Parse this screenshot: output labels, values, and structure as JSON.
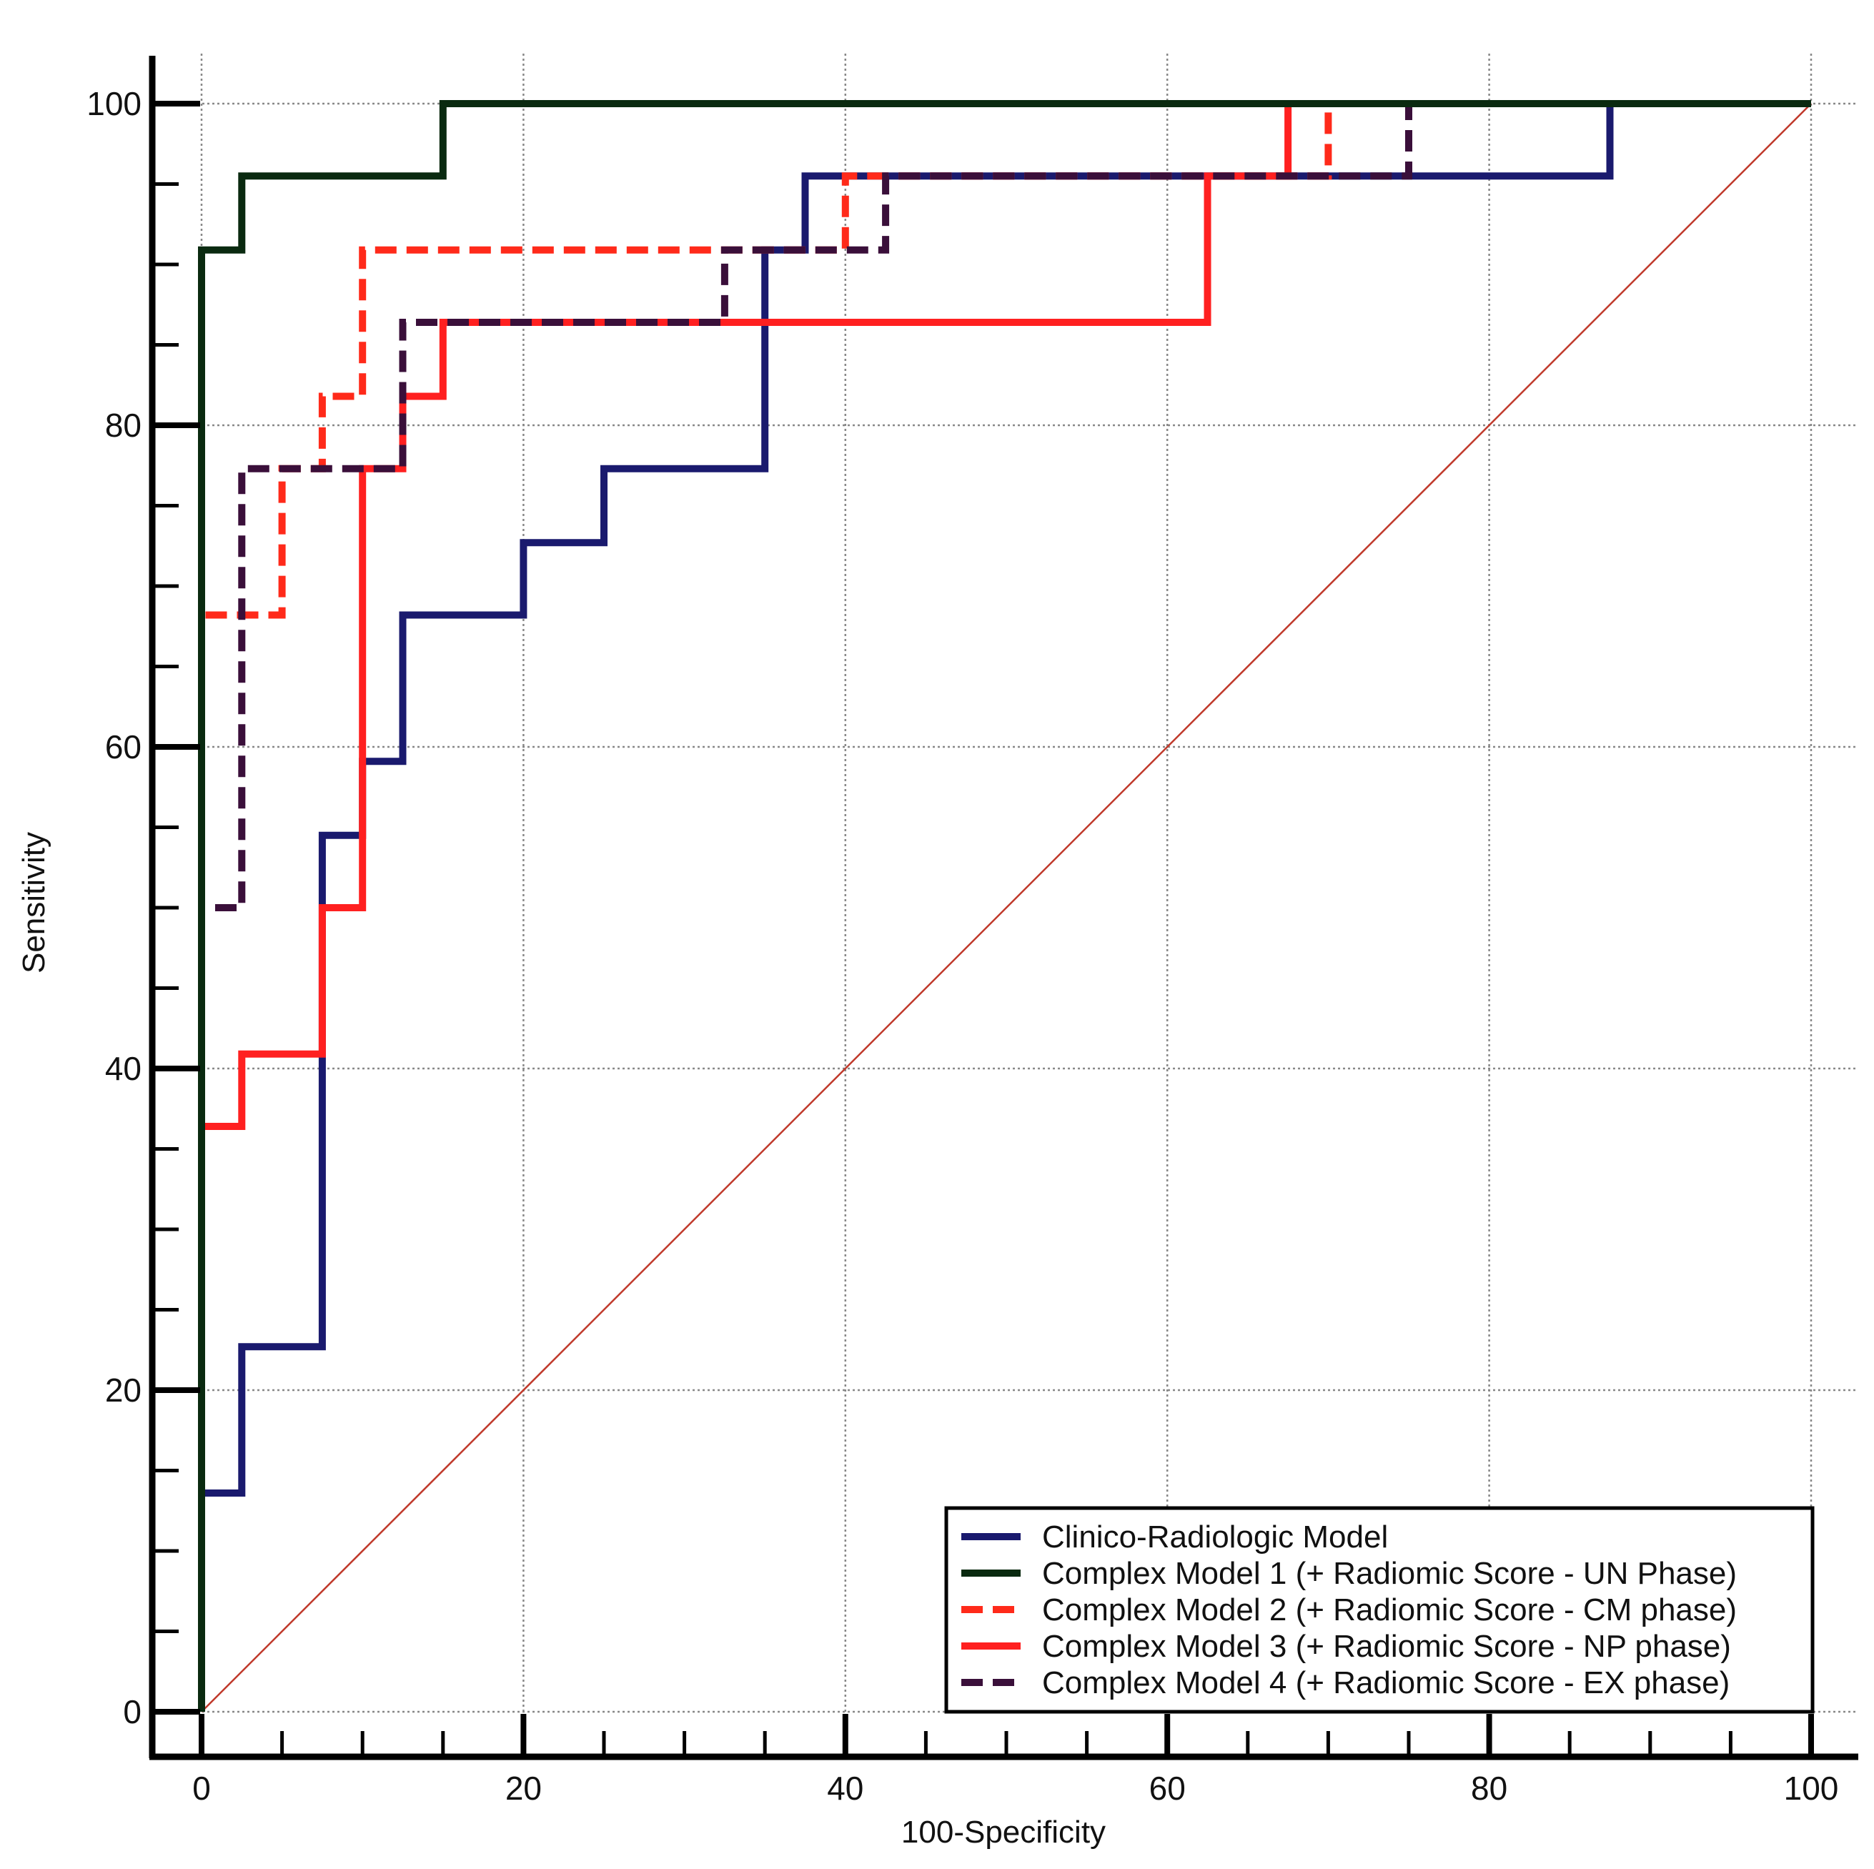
{
  "chart_data": {
    "type": "line",
    "title": "",
    "xlabel": "100-Specificity",
    "ylabel": "Sensitivity",
    "xlim": [
      0,
      100
    ],
    "ylim": [
      0,
      100
    ],
    "grid": true,
    "legend_position": "bottom-right",
    "x_ticks": [
      0,
      20,
      40,
      60,
      80,
      100
    ],
    "y_ticks": [
      0,
      20,
      40,
      60,
      80,
      100
    ],
    "x_tick_labels": [
      "0",
      "20",
      "40",
      "60",
      "80",
      "100"
    ],
    "y_tick_labels": [
      "0",
      "20",
      "40",
      "60",
      "80",
      "100"
    ],
    "reference_line": {
      "name": "Reference",
      "x": [
        0,
        100
      ],
      "y": [
        0,
        100
      ],
      "color": "#c0392b"
    },
    "series": [
      {
        "name": "Clinico-Radiologic Model",
        "color": "#1a1a6e",
        "dash": "solid",
        "x": [
          0,
          0,
          2.5,
          2.5,
          7.5,
          7.5,
          10,
          10,
          12.5,
          12.5,
          20,
          20,
          25,
          25,
          35,
          35,
          37.5,
          37.5,
          87.5,
          87.5,
          100
        ],
        "y": [
          0,
          13.6,
          13.6,
          22.7,
          22.7,
          54.5,
          54.5,
          59.1,
          59.1,
          68.2,
          68.2,
          72.7,
          72.7,
          77.3,
          77.3,
          90.9,
          90.9,
          95.5,
          95.5,
          100,
          100
        ]
      },
      {
        "name": "Complex Model 1 (+ Radiomic Score - UN Phase)",
        "color": "#0a2a10",
        "dash": "solid",
        "x": [
          0,
          0,
          2.5,
          2.5,
          15,
          15,
          100
        ],
        "y": [
          0,
          90.9,
          90.9,
          95.5,
          95.5,
          100,
          100
        ]
      },
      {
        "name": "Complex Model 2 (+ Radiomic Score - CM phase)",
        "color": "#ff2a1a",
        "dash": "dashed",
        "x": [
          0,
          0,
          5,
          5,
          7.5,
          7.5,
          10,
          10,
          40,
          40,
          70,
          70,
          100
        ],
        "y": [
          0,
          68.2,
          68.2,
          77.3,
          77.3,
          81.8,
          81.8,
          90.9,
          90.9,
          95.5,
          95.5,
          100,
          100
        ]
      },
      {
        "name": "Complex Model 3 (+ Radiomic Score - NP phase)",
        "color": "#ff2020",
        "dash": "solid",
        "x": [
          0,
          0,
          2.5,
          2.5,
          7.5,
          7.5,
          10,
          10,
          12.5,
          12.5,
          15,
          15,
          62.5,
          62.5,
          67.5,
          67.5,
          100
        ],
        "y": [
          0,
          36.4,
          36.4,
          40.9,
          40.9,
          50,
          50,
          77.3,
          77.3,
          81.8,
          81.8,
          86.4,
          86.4,
          95.5,
          95.5,
          100,
          100
        ]
      },
      {
        "name": "Complex Model 4 (+ Radiomic Score - EX phase)",
        "color": "#3a0f3a",
        "dash": "dashed",
        "x": [
          0,
          0,
          2.5,
          2.5,
          12.5,
          12.5,
          32.5,
          32.5,
          42.5,
          42.5,
          75,
          75,
          100
        ],
        "y": [
          0,
          50,
          50,
          77.3,
          77.3,
          86.4,
          86.4,
          90.9,
          90.9,
          95.5,
          95.5,
          100,
          100
        ]
      }
    ]
  }
}
